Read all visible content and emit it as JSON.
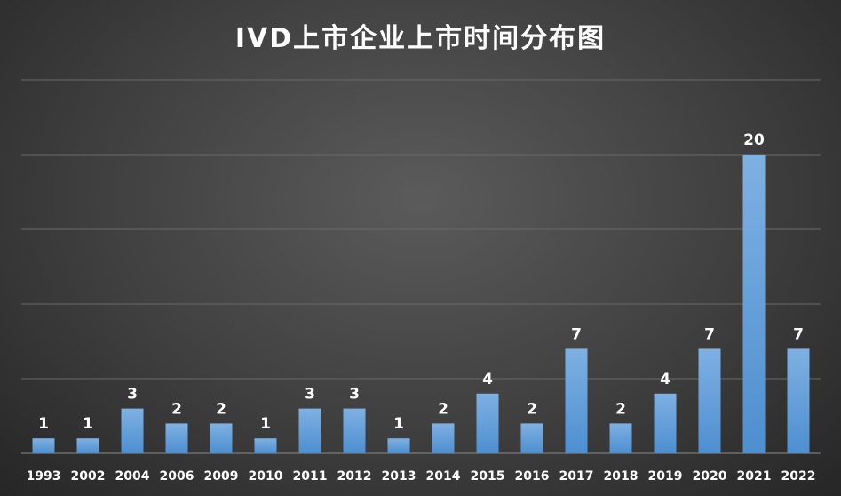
{
  "chart_data": {
    "type": "bar",
    "title": "IVD上市企业上市时间分布图",
    "xlabel": "",
    "ylabel": "",
    "categories": [
      "1993",
      "2002",
      "2004",
      "2006",
      "2009",
      "2010",
      "2011",
      "2012",
      "2013",
      "2014",
      "2015",
      "2016",
      "2017",
      "2018",
      "2019",
      "2020",
      "2021",
      "2022"
    ],
    "values": [
      1,
      1,
      3,
      2,
      2,
      1,
      3,
      3,
      1,
      2,
      4,
      2,
      7,
      2,
      4,
      7,
      20,
      7
    ],
    "ylim": [
      0,
      25
    ],
    "grid": true,
    "legend": "none",
    "bar_color": "#5b9bd5",
    "data_labels": true
  }
}
